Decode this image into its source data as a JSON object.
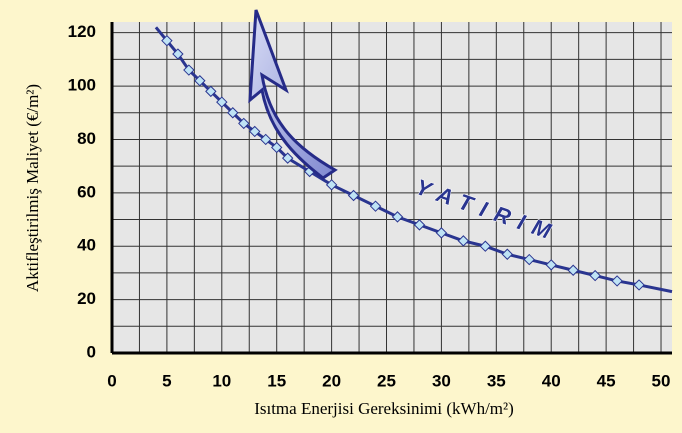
{
  "chart_data": {
    "type": "line",
    "x_label": "Isıtma Enerjisi Gereksinimi (kWh/m²)",
    "y_label": "Aktifleştirilmiş Maliyet (€/m²)",
    "annotation": "YATIRIM",
    "xlim": [
      0,
      51
    ],
    "ylim": [
      0,
      124
    ],
    "xticks": [
      0,
      5,
      10,
      15,
      20,
      25,
      30,
      35,
      40,
      45,
      50
    ],
    "yticks": [
      0,
      20,
      40,
      60,
      80,
      100,
      120
    ],
    "x_minor_grid": [
      2.5,
      7.5,
      12.5,
      17.5,
      22.5,
      27.5,
      32.5,
      37.5,
      42.5,
      47.5
    ],
    "y_minor_grid": [
      10,
      30,
      50,
      70,
      90,
      110
    ],
    "grid": true,
    "series": [
      {
        "color": "#2a3590",
        "marker": "none",
        "x": [
          4,
          5,
          6,
          7,
          8,
          9,
          10,
          11,
          12,
          13,
          14,
          15,
          16,
          18,
          20,
          22,
          24,
          26,
          28,
          30,
          32,
          34,
          36,
          38,
          40,
          42,
          44,
          46,
          48,
          51
        ],
        "values": [
          122,
          117,
          112,
          106,
          102,
          98,
          94,
          90,
          86,
          83,
          80,
          77,
          73,
          68,
          63,
          59,
          55,
          51,
          48,
          45,
          42,
          40,
          37,
          35,
          33,
          31,
          29,
          27,
          25.5,
          23
        ]
      },
      {
        "color": "#bfe3f5",
        "marker": "diamond",
        "x": [
          5,
          6,
          7,
          8,
          9,
          10,
          11,
          12,
          13,
          14,
          15,
          16,
          18,
          20,
          22,
          24,
          26,
          28,
          30,
          32,
          34,
          36,
          38,
          40,
          42,
          44,
          46,
          48
        ],
        "values": [
          117,
          112,
          106,
          102,
          98,
          94,
          90,
          86,
          83,
          80,
          77,
          73,
          68,
          63,
          59,
          55,
          51,
          48,
          45,
          42,
          40,
          37,
          35,
          33,
          31,
          29,
          27,
          25.5
        ]
      }
    ]
  }
}
